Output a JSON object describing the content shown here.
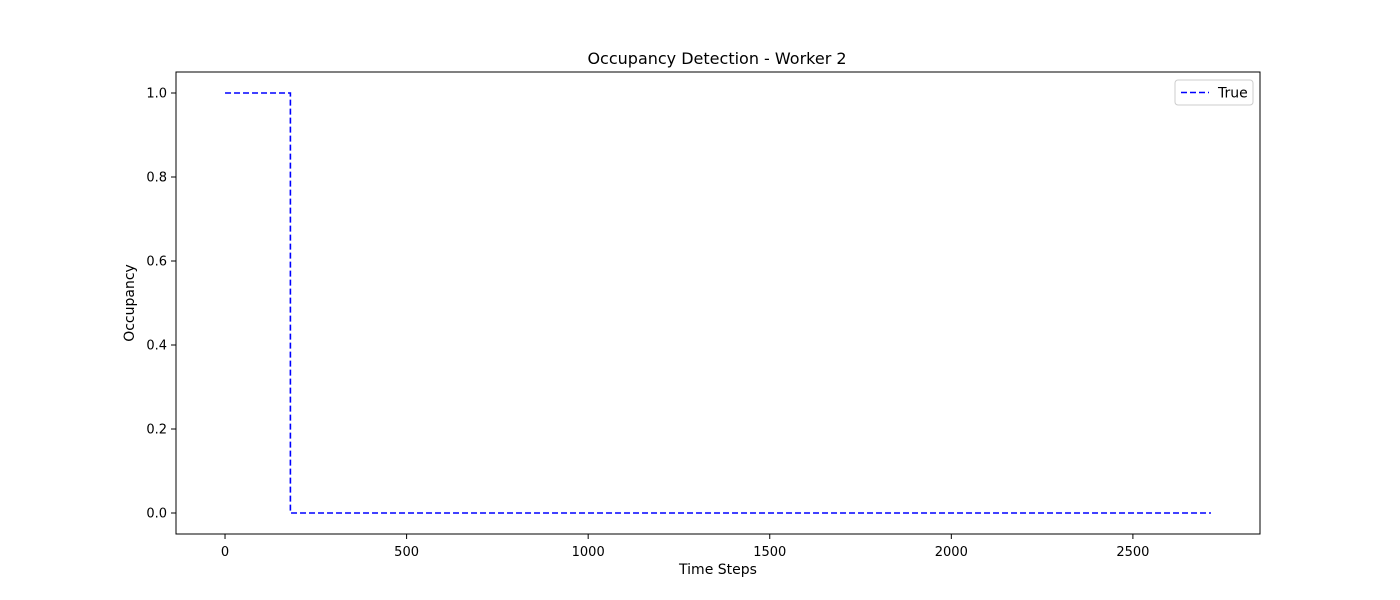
{
  "chart_data": {
    "type": "line",
    "title": "Occupancy Detection - Worker 2",
    "xlabel": "Time Steps",
    "ylabel": "Occupancy",
    "xlim": [
      -135,
      2850
    ],
    "ylim": [
      -0.05,
      1.05
    ],
    "xticks": [
      0,
      500,
      1000,
      1500,
      2000,
      2500
    ],
    "yticks": [
      0.0,
      0.2,
      0.4,
      0.6,
      0.8,
      1.0
    ],
    "xtick_labels": [
      "0",
      "500",
      "1000",
      "1500",
      "2000",
      "2500"
    ],
    "ytick_labels": [
      "0.0",
      "0.2",
      "0.4",
      "0.6",
      "0.8",
      "1.0"
    ],
    "grid": false,
    "legend_position": "top-right",
    "series": [
      {
        "name": "True",
        "color": "#0000ff",
        "line_style": "dashed",
        "points": [
          [
            0,
            1.0
          ],
          [
            180,
            1.0
          ],
          [
            180,
            0.0
          ],
          [
            2715,
            0.0
          ]
        ]
      }
    ]
  }
}
